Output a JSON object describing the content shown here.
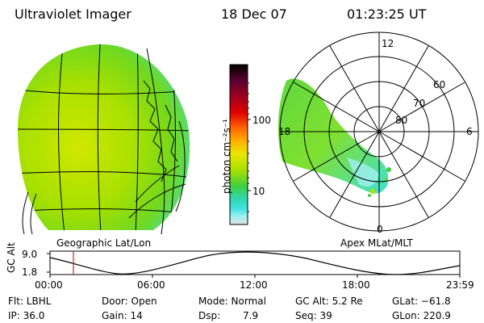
{
  "header": {
    "title": "Ultraviolet Imager",
    "date": "18 Dec 07",
    "time": "01:23:25 UT"
  },
  "left_panel": {
    "caption": "Geographic Lat/Lon"
  },
  "right_panel": {
    "caption": "Apex MLat/MLT",
    "mlt_labels": [
      "12",
      "18",
      "6",
      "0"
    ],
    "lat_labels": [
      "60",
      "70",
      "80"
    ]
  },
  "colorbar": {
    "unit_label": "photon cm⁻²s⁻¹",
    "ticks": [
      "100",
      "10"
    ],
    "colors": [
      "#000000",
      "#5a0030",
      "#a00020",
      "#e00000",
      "#ff6a00",
      "#ffb000",
      "#e8e800",
      "#a8e000",
      "#40d040",
      "#30d8b0",
      "#40e0e0",
      "#a0f0f0",
      "#e0e0e0"
    ]
  },
  "timeline": {
    "y_axis_label": "GC Alt",
    "y_ticks": [
      "9.0",
      "1.8"
    ],
    "x_ticks": [
      "00:00",
      "06:00",
      "12:00",
      "18:00",
      "23:59"
    ],
    "current_time": "01:23:25"
  },
  "info": {
    "flt": "Flt: LBHL",
    "ip": "IP: 36.0",
    "door": "Door: Open",
    "gain": "Gain: 14",
    "mode": "Mode: Normal",
    "dsp_label": "Dsp:",
    "dsp_value": "7.9",
    "gc_alt": "GC Alt: 5.2 Re",
    "seq": "Seq: 39",
    "glat": "GLat: −61.8",
    "glon": "GLon: 220.9"
  },
  "colors": {
    "aurora_green": "#a8e000",
    "aurora_cyan": "#40e0e0",
    "marker_red": "#cc2020"
  }
}
